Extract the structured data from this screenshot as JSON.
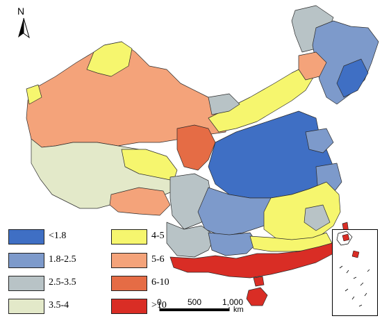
{
  "north_arrow": {
    "label": "N"
  },
  "legend": {
    "items": [
      {
        "label": "<1.8",
        "color": "#3f6fc4"
      },
      {
        "label": "4-5",
        "color": "#f6f66e"
      },
      {
        "label": "1.8-2.5",
        "color": "#7d9acb"
      },
      {
        "label": "5-6",
        "color": "#f4a37a"
      },
      {
        "label": "2.5-3.5",
        "color": "#b8c3c6"
      },
      {
        "label": "6-10",
        "color": "#e56c45"
      },
      {
        "label": "3.5-4",
        "color": "#e3e9c9"
      },
      {
        "label": ">10",
        "color": "#d92d25"
      }
    ]
  },
  "scale_bar": {
    "ticks": [
      "0",
      "500",
      "1,000"
    ],
    "unit": "km"
  },
  "inset": {
    "description_icon": "south-china-sea-inset"
  }
}
